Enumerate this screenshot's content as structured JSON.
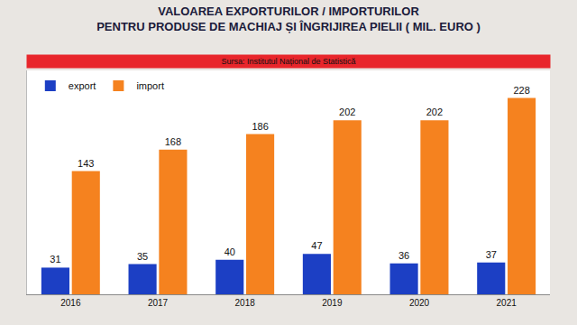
{
  "chart_data": {
    "type": "bar",
    "title": "VALOAREA EXPORTURILOR / IMPORTURILOR\nPENTRU PRODUSE DE MACHIAJ ȘI ÎNGRIJIREA PIELII ( MIL. EURO )",
    "subtitle": "Sursa: Institutul Național de Statistică",
    "categories": [
      "2016",
      "2017",
      "2018",
      "2019",
      "2020",
      "2021"
    ],
    "series": [
      {
        "name": "export",
        "color": "#1c3fc4",
        "values": [
          31,
          35,
          40,
          47,
          36,
          37
        ]
      },
      {
        "name": "import",
        "color": "#f5821f",
        "values": [
          143,
          168,
          186,
          202,
          202,
          228
        ]
      }
    ],
    "ylim": [
      0,
      260
    ],
    "data_labels": true,
    "tick_labels": "x",
    "legend": "top-left",
    "grid": false
  }
}
